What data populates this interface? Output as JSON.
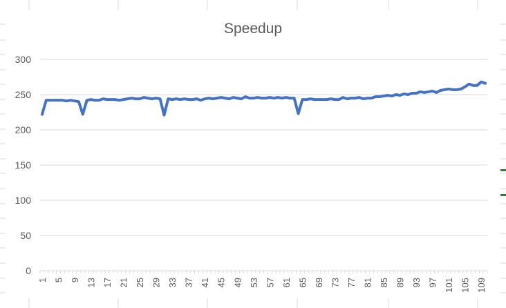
{
  "chart_data": {
    "type": "line",
    "title": "Speedup",
    "xlabel": "",
    "ylabel": "",
    "ylim": [
      0,
      300
    ],
    "yticks": [
      0,
      50,
      100,
      150,
      200,
      250,
      300
    ],
    "xtick_labels": [
      "1",
      "5",
      "9",
      "13",
      "17",
      "21",
      "25",
      "29",
      "33",
      "37",
      "41",
      "45",
      "49",
      "53",
      "57",
      "61",
      "65",
      "69",
      "73",
      "77",
      "81",
      "85",
      "89",
      "93",
      "97",
      "101",
      "105",
      "109"
    ],
    "grid": true,
    "legend": "none",
    "line_color": "#4472c4",
    "x": [
      1,
      2,
      3,
      4,
      5,
      6,
      7,
      8,
      9,
      10,
      11,
      12,
      13,
      14,
      15,
      16,
      17,
      18,
      19,
      20,
      21,
      22,
      23,
      24,
      25,
      26,
      27,
      28,
      29,
      30,
      31,
      32,
      33,
      34,
      35,
      36,
      37,
      38,
      39,
      40,
      41,
      42,
      43,
      44,
      45,
      46,
      47,
      48,
      49,
      50,
      51,
      52,
      53,
      54,
      55,
      56,
      57,
      58,
      59,
      60,
      61,
      62,
      63,
      64,
      65,
      66,
      67,
      68,
      69,
      70,
      71,
      72,
      73,
      74,
      75,
      76,
      77,
      78,
      79,
      80,
      81,
      82,
      83,
      84,
      85,
      86,
      87,
      88,
      89,
      90,
      91,
      92,
      93,
      94,
      95,
      96,
      97,
      98,
      99,
      100,
      101,
      102,
      103,
      104,
      105,
      106,
      107,
      108,
      109,
      110
    ],
    "series": [
      {
        "values": [
          222,
          242,
          242,
          242,
          242,
          242,
          241,
          242,
          241,
          240,
          222,
          242,
          243,
          242,
          242,
          244,
          243,
          243,
          243,
          242,
          243,
          244,
          245,
          244,
          244,
          246,
          245,
          244,
          245,
          244,
          221,
          244,
          243,
          244,
          243,
          244,
          243,
          243,
          244,
          242,
          244,
          245,
          244,
          245,
          246,
          245,
          244,
          246,
          245,
          244,
          247,
          245,
          245,
          246,
          245,
          245,
          246,
          245,
          246,
          245,
          246,
          245,
          245,
          223,
          243,
          243,
          244,
          243,
          243,
          243,
          243,
          244,
          243,
          243,
          246,
          244,
          245,
          245,
          246,
          244,
          245,
          245,
          247,
          247,
          248,
          249,
          248,
          250,
          249,
          251,
          250,
          252,
          252,
          254,
          253,
          254,
          255,
          253,
          256,
          257,
          258,
          257,
          257,
          258,
          261,
          265,
          263,
          263,
          268,
          266
        ]
      }
    ]
  }
}
